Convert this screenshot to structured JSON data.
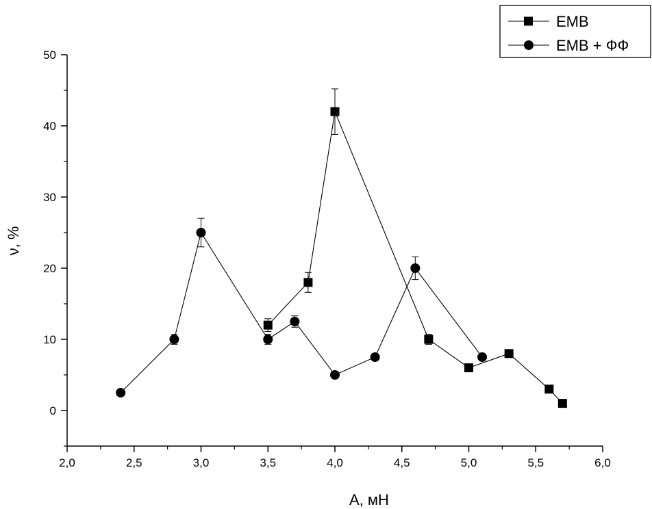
{
  "chart_data": {
    "type": "line",
    "xlabel": "A, мН",
    "ylabel": "ν, %",
    "xlim": [
      2.0,
      6.0
    ],
    "ylim": [
      -5,
      50
    ],
    "x_ticks": [
      2.0,
      2.5,
      3.0,
      3.5,
      4.0,
      4.5,
      5.0,
      5.5,
      6.0
    ],
    "x_tick_labels": [
      "2,0",
      "2,5",
      "3,0",
      "3,5",
      "4,0",
      "4,5",
      "5,0",
      "5,5",
      "6,0"
    ],
    "y_ticks": [
      0,
      10,
      20,
      30,
      40,
      50
    ],
    "y_tick_labels": [
      "0",
      "10",
      "20",
      "30",
      "40",
      "50"
    ],
    "grid": false,
    "legend_position": "top-right",
    "series": [
      {
        "name": "EMB",
        "marker": "square",
        "color": "#000000",
        "points": [
          {
            "x": 3.5,
            "y": 12,
            "err": 0.9
          },
          {
            "x": 3.8,
            "y": 18,
            "err": 1.4
          },
          {
            "x": 4.0,
            "y": 42,
            "err": 3.2
          },
          {
            "x": 4.7,
            "y": 10,
            "err": 0.7
          },
          {
            "x": 5.0,
            "y": 6,
            "err": 0
          },
          {
            "x": 5.3,
            "y": 8,
            "err": 0
          },
          {
            "x": 5.6,
            "y": 3,
            "err": 0
          },
          {
            "x": 5.7,
            "y": 1,
            "err": 0
          }
        ]
      },
      {
        "name": "EMB + ФФ",
        "marker": "circle",
        "color": "#000000",
        "points": [
          {
            "x": 2.4,
            "y": 2.5,
            "err": 0
          },
          {
            "x": 2.8,
            "y": 10,
            "err": 0.7
          },
          {
            "x": 3.0,
            "y": 25,
            "err": 2.0
          },
          {
            "x": 3.5,
            "y": 10,
            "err": 0.7
          },
          {
            "x": 3.7,
            "y": 12.5,
            "err": 0.8
          },
          {
            "x": 4.0,
            "y": 5,
            "err": 0
          },
          {
            "x": 4.3,
            "y": 7.5,
            "err": 0
          },
          {
            "x": 4.6,
            "y": 20,
            "err": 1.6
          },
          {
            "x": 5.1,
            "y": 7.5,
            "err": 0
          }
        ]
      }
    ]
  }
}
